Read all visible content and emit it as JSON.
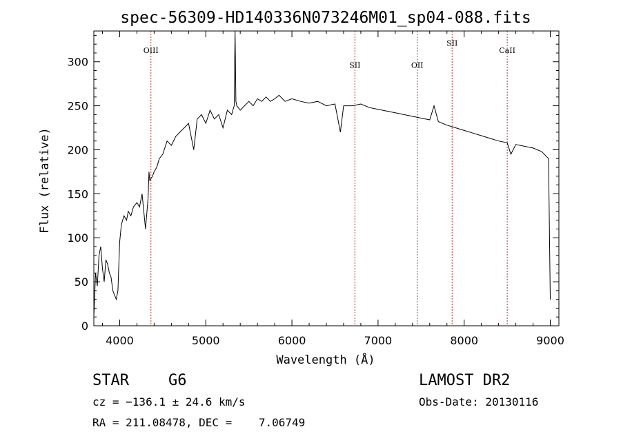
{
  "chart_data": {
    "type": "line",
    "title": "spec-56309-HD140336N073246M01_sp04-088.fits",
    "xlabel": "Wavelength (Å)",
    "ylabel": "Flux (relative)",
    "xlim": [
      3700,
      9100
    ],
    "ylim": [
      0,
      335
    ],
    "xticks": [
      4000,
      5000,
      6000,
      7000,
      8000,
      9000
    ],
    "yticks": [
      0,
      50,
      100,
      150,
      200,
      250,
      300
    ],
    "grid": false,
    "series": [
      {
        "x": [
          3700,
          3720,
          3740,
          3760,
          3780,
          3800,
          3820,
          3840,
          3860,
          3880,
          3900,
          3920,
          3940,
          3960,
          3980,
          4000,
          4020,
          4050,
          4080,
          4100,
          4130,
          4160,
          4200,
          4230,
          4260,
          4300,
          4330,
          4340,
          4350,
          4380,
          4400,
          4430,
          4460,
          4500,
          4550,
          4600,
          4650,
          4700,
          4750,
          4800,
          4860,
          4900,
          4950,
          5000,
          5050,
          5100,
          5150,
          5200,
          5250,
          5300,
          5330,
          5340,
          5350,
          5360,
          5400,
          5450,
          5500,
          5550,
          5600,
          5650,
          5700,
          5750,
          5800,
          5850,
          5890,
          5920,
          6000,
          6100,
          6200,
          6300,
          6400,
          6500,
          6563,
          6600,
          6700,
          6800,
          6900,
          7000,
          7100,
          7200,
          7300,
          7400,
          7500,
          7600,
          7650,
          7700,
          7800,
          7900,
          8000,
          8100,
          8200,
          8300,
          8400,
          8500,
          8542,
          8600,
          8700,
          8800,
          8900,
          8980,
          9000
        ],
        "y": [
          10,
          60,
          45,
          80,
          90,
          65,
          50,
          75,
          70,
          60,
          55,
          40,
          35,
          30,
          40,
          95,
          115,
          125,
          120,
          130,
          125,
          135,
          140,
          135,
          150,
          110,
          145,
          175,
          165,
          170,
          175,
          180,
          190,
          195,
          210,
          205,
          215,
          220,
          225,
          230,
          200,
          235,
          240,
          230,
          245,
          235,
          240,
          225,
          245,
          240,
          250,
          335,
          255,
          250,
          245,
          250,
          255,
          250,
          258,
          255,
          260,
          255,
          258,
          262,
          258,
          255,
          258,
          255,
          253,
          255,
          250,
          252,
          220,
          250,
          250,
          252,
          248,
          246,
          244,
          242,
          240,
          238,
          236,
          234,
          250,
          232,
          228,
          225,
          222,
          219,
          216,
          213,
          210,
          208,
          195,
          206,
          204,
          202,
          198,
          190,
          30
        ]
      }
    ],
    "annotations": [
      {
        "label": "OIII",
        "x": 4363,
        "label_y": 310
      },
      {
        "label": "SII",
        "x": 6731,
        "label_y": 293
      },
      {
        "label": "OII",
        "x": 7455,
        "label_y": 293
      },
      {
        "label": "SII",
        "x": 7860,
        "label_y": 318
      },
      {
        "label": "CaII",
        "x": 8500,
        "label_y": 310
      }
    ]
  },
  "info": {
    "object_class": "STAR",
    "subclass": "G6",
    "survey": "LAMOST DR2",
    "cz": "cz = −136.1 ± 24.6 km/s",
    "obs_date": "Obs-Date: 20130116",
    "coords": "RA = 211.08478, DEC =    7.06749"
  },
  "colors": {
    "line": "#000000",
    "annotation": "#b03030"
  }
}
